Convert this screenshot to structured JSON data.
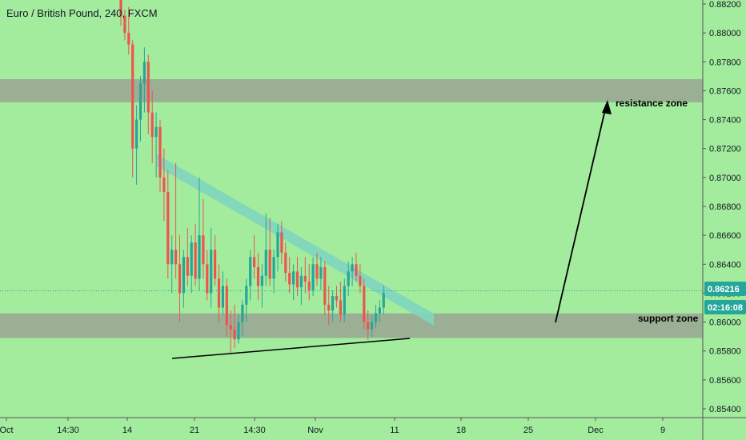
{
  "header": {
    "title": "Euro / British Pound, 240, FXCM"
  },
  "price_badge": {
    "price": "0.86216",
    "countdown": "02:16:08",
    "bg_color": "#26a69a"
  },
  "colors": {
    "background": "#a3ec9d",
    "up_candle": "#26a69a",
    "down_candle": "#ef5350",
    "zone_fill": "#9aaf94",
    "channel_fill": "#7fd6c0",
    "trendline": "#000000",
    "axis_text": "#131722"
  },
  "chart_data": {
    "type": "candlestick",
    "title": "Euro / British Pound, 240, FXCM",
    "y_axis": {
      "range": [
        0.8538,
        0.8824
      ],
      "ticks": [
        "0.88200",
        "0.88000",
        "0.87800",
        "0.87600",
        "0.87400",
        "0.87200",
        "0.87000",
        "0.86800",
        "0.86600",
        "0.86400",
        "0.86200",
        "0.86000",
        "0.85800",
        "0.85600",
        "0.85400"
      ],
      "position": "right"
    },
    "x_axis": {
      "ticks": [
        "Oct",
        "14:30",
        "14",
        "21",
        "14:30",
        "Nov",
        "11",
        "18",
        "25",
        "Dec",
        "9"
      ]
    },
    "current_price": 0.86216,
    "countdown": "02:16:08",
    "zones": [
      {
        "label": "resistance zone",
        "from": 0.8752,
        "to": 0.8768
      },
      {
        "label": "support zone",
        "from": 0.8589,
        "to": 0.8606
      }
    ],
    "candles": [
      [
        0.8824,
        0.8824,
        0.8805,
        0.8812
      ],
      [
        0.8812,
        0.8816,
        0.8795,
        0.88
      ],
      [
        0.88,
        0.8818,
        0.8785,
        0.8792
      ],
      [
        0.8792,
        0.8795,
        0.87,
        0.872
      ],
      [
        0.872,
        0.875,
        0.8695,
        0.874
      ],
      [
        0.874,
        0.877,
        0.8725,
        0.8765
      ],
      [
        0.8765,
        0.879,
        0.8745,
        0.878
      ],
      [
        0.878,
        0.8785,
        0.873,
        0.8745
      ],
      [
        0.8745,
        0.876,
        0.871,
        0.8728
      ],
      [
        0.8728,
        0.8745,
        0.87,
        0.8735
      ],
      [
        0.8735,
        0.874,
        0.869,
        0.87
      ],
      [
        0.87,
        0.872,
        0.867,
        0.869
      ],
      [
        0.869,
        0.8705,
        0.863,
        0.864
      ],
      [
        0.864,
        0.866,
        0.862,
        0.865
      ],
      [
        0.865,
        0.871,
        0.863,
        0.864
      ],
      [
        0.864,
        0.866,
        0.86,
        0.862
      ],
      [
        0.862,
        0.865,
        0.861,
        0.8645
      ],
      [
        0.8645,
        0.8665,
        0.8625,
        0.8632
      ],
      [
        0.8632,
        0.866,
        0.862,
        0.8655
      ],
      [
        0.8655,
        0.8668,
        0.8625,
        0.863
      ],
      [
        0.863,
        0.87,
        0.8622,
        0.866
      ],
      [
        0.866,
        0.8685,
        0.863,
        0.864
      ],
      [
        0.864,
        0.865,
        0.8615,
        0.862
      ],
      [
        0.862,
        0.8665,
        0.861,
        0.865
      ],
      [
        0.865,
        0.866,
        0.8625,
        0.863
      ],
      [
        0.863,
        0.864,
        0.86,
        0.861
      ],
      [
        0.861,
        0.8635,
        0.8605,
        0.8625
      ],
      [
        0.8625,
        0.863,
        0.859,
        0.8598
      ],
      [
        0.8598,
        0.8608,
        0.8578,
        0.8595
      ],
      [
        0.8595,
        0.8612,
        0.8582,
        0.8588
      ],
      [
        0.8588,
        0.8605,
        0.8585,
        0.86
      ],
      [
        0.86,
        0.8615,
        0.859,
        0.8612
      ],
      [
        0.8612,
        0.863,
        0.86,
        0.8625
      ],
      [
        0.8625,
        0.865,
        0.8615,
        0.8645
      ],
      [
        0.8645,
        0.866,
        0.863,
        0.8638
      ],
      [
        0.8638,
        0.8648,
        0.8615,
        0.8625
      ],
      [
        0.8625,
        0.864,
        0.861,
        0.8632
      ],
      [
        0.8632,
        0.8675,
        0.8625,
        0.865
      ],
      [
        0.865,
        0.8672,
        0.8625,
        0.863
      ],
      [
        0.863,
        0.865,
        0.862,
        0.8645
      ],
      [
        0.8645,
        0.8668,
        0.8635,
        0.8662
      ],
      [
        0.8662,
        0.867,
        0.864,
        0.8648
      ],
      [
        0.8648,
        0.8655,
        0.8628,
        0.8634
      ],
      [
        0.8634,
        0.8645,
        0.862,
        0.8626
      ],
      [
        0.8626,
        0.864,
        0.8615,
        0.8635
      ],
      [
        0.8635,
        0.8645,
        0.8618,
        0.8624
      ],
      [
        0.8624,
        0.8638,
        0.8612,
        0.8632
      ],
      [
        0.8632,
        0.8645,
        0.862,
        0.8628
      ],
      [
        0.8628,
        0.864,
        0.8615,
        0.8622
      ],
      [
        0.8622,
        0.8645,
        0.8618,
        0.864
      ],
      [
        0.864,
        0.8648,
        0.8625,
        0.863
      ],
      [
        0.863,
        0.8645,
        0.8622,
        0.8638
      ],
      [
        0.8638,
        0.8642,
        0.8605,
        0.8612
      ],
      [
        0.8612,
        0.8625,
        0.8598,
        0.8608
      ],
      [
        0.8608,
        0.8622,
        0.86,
        0.8618
      ],
      [
        0.8618,
        0.8625,
        0.861,
        0.8615
      ],
      [
        0.8615,
        0.8628,
        0.86,
        0.8605
      ],
      [
        0.8605,
        0.863,
        0.86,
        0.8625
      ],
      [
        0.8625,
        0.8642,
        0.8618,
        0.8635
      ],
      [
        0.8635,
        0.8645,
        0.8625,
        0.864
      ],
      [
        0.864,
        0.8648,
        0.8628,
        0.8632
      ],
      [
        0.8632,
        0.864,
        0.862,
        0.8625
      ],
      [
        0.8625,
        0.863,
        0.8595,
        0.86
      ],
      [
        0.86,
        0.8608,
        0.8588,
        0.8595
      ],
      [
        0.8595,
        0.8605,
        0.859,
        0.86
      ],
      [
        0.86,
        0.8612,
        0.8596,
        0.8606
      ],
      [
        0.8606,
        0.8615,
        0.86,
        0.861
      ],
      [
        0.861,
        0.8625,
        0.8605,
        0.862
      ]
    ]
  },
  "annotations": {
    "resistance_label": "resistance zone",
    "support_label": "support zone"
  }
}
